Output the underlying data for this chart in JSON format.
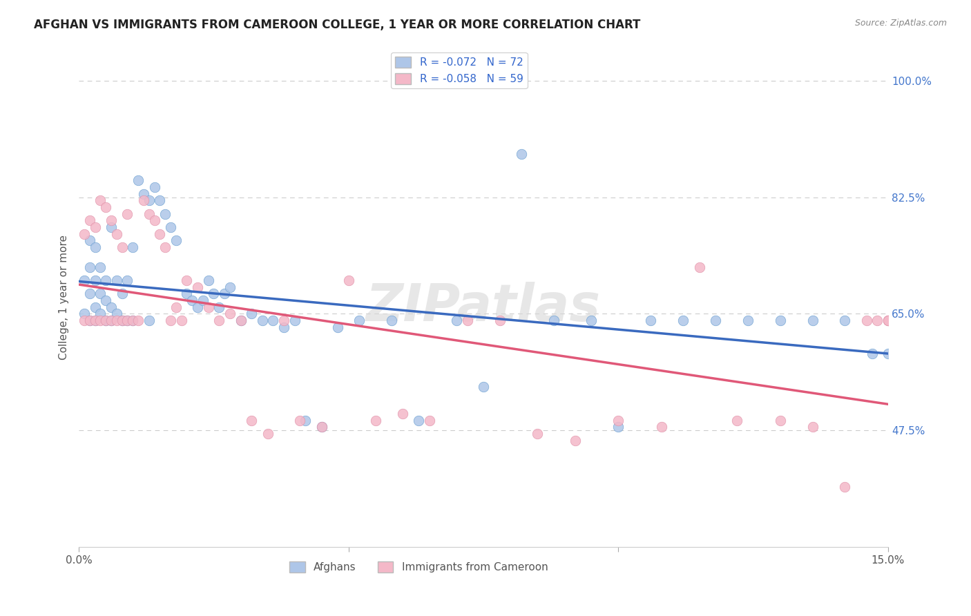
{
  "title": "AFGHAN VS IMMIGRANTS FROM CAMEROON COLLEGE, 1 YEAR OR MORE CORRELATION CHART",
  "source": "Source: ZipAtlas.com",
  "ylabel": "College, 1 year or more",
  "xlim": [
    0.0,
    0.15
  ],
  "ylim": [
    0.3,
    1.05
  ],
  "yticks_right": [
    1.0,
    0.825,
    0.65,
    0.475
  ],
  "yticklabels_right": [
    "100.0%",
    "82.5%",
    "65.0%",
    "47.5%"
  ],
  "legend1_label": "R = -0.072   N = 72",
  "legend2_label": "R = -0.058   N = 59",
  "legend1_color": "#aec6e8",
  "legend2_color": "#f4b8c8",
  "line1_color": "#3a6abf",
  "line2_color": "#e05878",
  "scatter1_color": "#aec6e8",
  "scatter2_color": "#f4b8c8",
  "scatter_edge1": "#6a9fd0",
  "scatter_edge2": "#e090a8",
  "watermark": "ZIPatlas",
  "watermark_color": "#d8d8d8",
  "grid_color": "#cccccc",
  "background": "#ffffff",
  "afghans_x": [
    0.001,
    0.001,
    0.002,
    0.002,
    0.002,
    0.002,
    0.003,
    0.003,
    0.003,
    0.003,
    0.004,
    0.004,
    0.004,
    0.005,
    0.005,
    0.005,
    0.006,
    0.006,
    0.006,
    0.007,
    0.007,
    0.008,
    0.008,
    0.009,
    0.009,
    0.01,
    0.01,
    0.011,
    0.012,
    0.013,
    0.013,
    0.014,
    0.015,
    0.016,
    0.017,
    0.018,
    0.02,
    0.021,
    0.022,
    0.023,
    0.024,
    0.025,
    0.026,
    0.027,
    0.028,
    0.03,
    0.032,
    0.034,
    0.036,
    0.038,
    0.04,
    0.042,
    0.045,
    0.048,
    0.052,
    0.058,
    0.063,
    0.07,
    0.075,
    0.082,
    0.088,
    0.095,
    0.1,
    0.106,
    0.112,
    0.118,
    0.124,
    0.13,
    0.136,
    0.142,
    0.147,
    0.15
  ],
  "afghans_y": [
    0.65,
    0.7,
    0.64,
    0.68,
    0.72,
    0.76,
    0.64,
    0.66,
    0.7,
    0.75,
    0.65,
    0.68,
    0.72,
    0.64,
    0.67,
    0.7,
    0.64,
    0.66,
    0.78,
    0.65,
    0.7,
    0.64,
    0.68,
    0.64,
    0.7,
    0.64,
    0.75,
    0.85,
    0.83,
    0.64,
    0.82,
    0.84,
    0.82,
    0.8,
    0.78,
    0.76,
    0.68,
    0.67,
    0.66,
    0.67,
    0.7,
    0.68,
    0.66,
    0.68,
    0.69,
    0.64,
    0.65,
    0.64,
    0.64,
    0.63,
    0.64,
    0.49,
    0.48,
    0.63,
    0.64,
    0.64,
    0.49,
    0.64,
    0.54,
    0.89,
    0.64,
    0.64,
    0.48,
    0.64,
    0.64,
    0.64,
    0.64,
    0.64,
    0.64,
    0.64,
    0.59,
    0.59
  ],
  "cameroon_x": [
    0.001,
    0.001,
    0.002,
    0.002,
    0.003,
    0.003,
    0.004,
    0.004,
    0.005,
    0.005,
    0.006,
    0.006,
    0.007,
    0.007,
    0.008,
    0.008,
    0.009,
    0.009,
    0.01,
    0.011,
    0.012,
    0.013,
    0.014,
    0.015,
    0.016,
    0.017,
    0.018,
    0.019,
    0.02,
    0.022,
    0.024,
    0.026,
    0.028,
    0.03,
    0.032,
    0.035,
    0.038,
    0.041,
    0.045,
    0.05,
    0.055,
    0.06,
    0.065,
    0.072,
    0.078,
    0.085,
    0.092,
    0.1,
    0.108,
    0.115,
    0.122,
    0.13,
    0.136,
    0.142,
    0.146,
    0.148,
    0.15,
    0.15,
    0.15
  ],
  "cameroon_y": [
    0.64,
    0.77,
    0.64,
    0.79,
    0.64,
    0.78,
    0.64,
    0.82,
    0.64,
    0.81,
    0.64,
    0.79,
    0.64,
    0.77,
    0.64,
    0.75,
    0.64,
    0.8,
    0.64,
    0.64,
    0.82,
    0.8,
    0.79,
    0.77,
    0.75,
    0.64,
    0.66,
    0.64,
    0.7,
    0.69,
    0.66,
    0.64,
    0.65,
    0.64,
    0.49,
    0.47,
    0.64,
    0.49,
    0.48,
    0.7,
    0.49,
    0.5,
    0.49,
    0.64,
    0.64,
    0.47,
    0.46,
    0.49,
    0.48,
    0.72,
    0.49,
    0.49,
    0.48,
    0.39,
    0.64,
    0.64,
    0.64,
    0.64,
    0.64
  ]
}
